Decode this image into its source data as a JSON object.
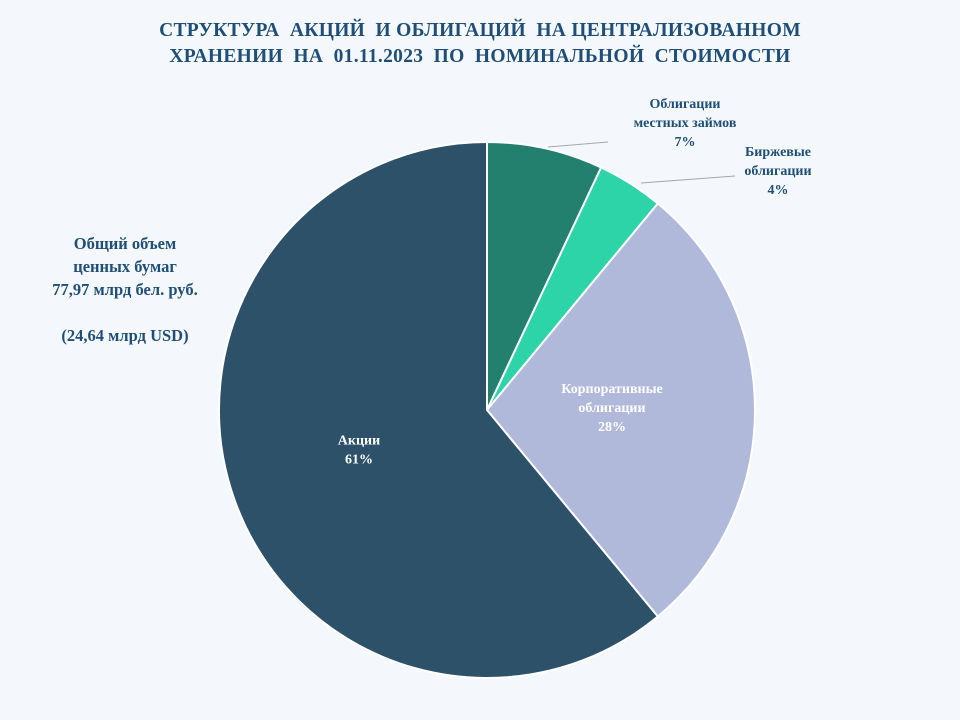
{
  "title_lines": [
    "СТРУКТУРА  АКЦИЙ  И ОБЛИГАЦИЙ  НА ЦЕНТРАЛИЗОВАННОМ",
    "ХРАНЕНИИ  НА  01.11.2023  ПО  НОМИНАЛЬНОЙ  СТОИМОСТИ"
  ],
  "summary": {
    "line1": "Общий объем",
    "line2": "ценных бумаг",
    "line3": "77,97  млрд бел. руб.",
    "line4": "(24,64  млрд USD)"
  },
  "chart_data": {
    "type": "pie",
    "title": "СТРУКТУРА  АКЦИЙ  И ОБЛИГАЦИЙ  НА ЦЕНТРАЛИЗОВАННОМ ХРАНЕНИИ  НА  01.11.2023  ПО  НОМИНАЛЬНОЙ  СТОИМОСТИ",
    "start_angle_deg": 0,
    "direction": "clockwise",
    "slices": [
      {
        "label_lines": [
          "Облигации",
          "местных займов"
        ],
        "value": 7,
        "value_label": "7%",
        "color": "#237f6e",
        "label_color": "#1f4e79",
        "label_position": "outside"
      },
      {
        "label_lines": [
          "Биржевые",
          "облигации"
        ],
        "value": 4,
        "value_label": "4%",
        "color": "#2dd4a8",
        "label_color": "#1f4e79",
        "label_position": "outside"
      },
      {
        "label_lines": [
          "Корпоративные",
          "облигации"
        ],
        "value": 28,
        "value_label": "28%",
        "color": "#b1b9db",
        "label_color": "#ffffff",
        "label_position": "inside"
      },
      {
        "label_lines": [
          "Акции"
        ],
        "value": 61,
        "value_label": "61%",
        "color": "#2c5169",
        "label_color": "#ffffff",
        "label_position": "inside"
      }
    ]
  }
}
